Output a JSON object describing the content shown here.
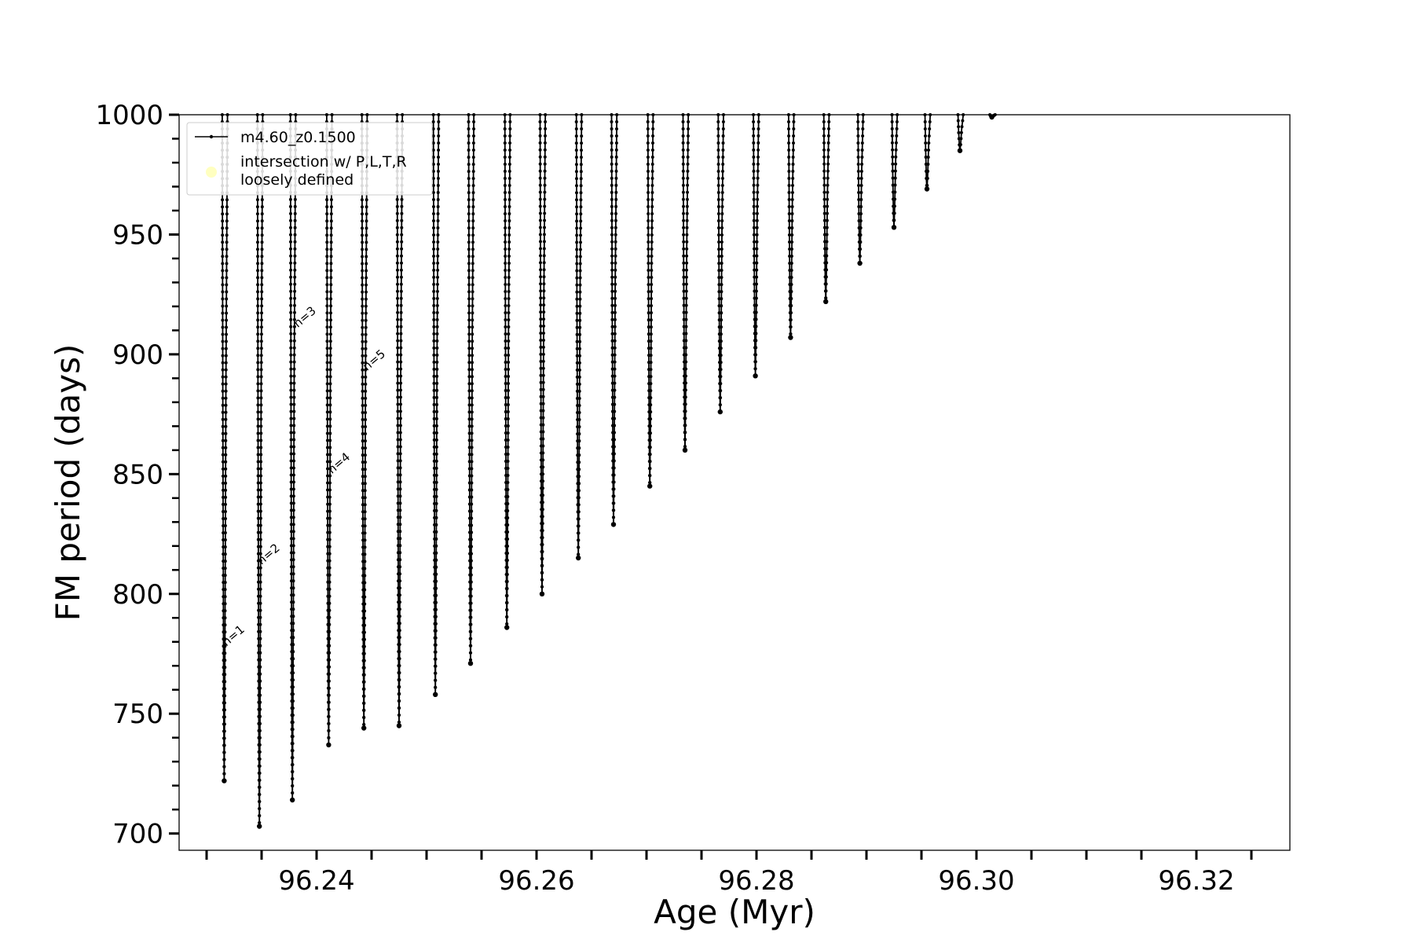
{
  "chart_data": {
    "type": "line",
    "xlabel": "Age (Myr)",
    "ylabel": "FM period (days)",
    "xlim": [
      96.2275,
      96.3285
    ],
    "ylim": [
      693,
      1000
    ],
    "xticks": [
      "96.24",
      "96.26",
      "96.28",
      "96.30",
      "96.32"
    ],
    "yticks": [
      "700",
      "750",
      "800",
      "850",
      "900",
      "950",
      "1000"
    ],
    "grid": false,
    "legend_position": "top-left",
    "legend": [
      {
        "label": "m4.60_z0.1500",
        "marker": "line-with-dots",
        "color": "#000000"
      },
      {
        "label": "intersection w/ P,L,T,R\nloosely defined",
        "marker": "circle",
        "color": "#ffffc0"
      }
    ],
    "series": [
      {
        "name": "m4.60_z0.1500",
        "color": "#000000",
        "loops": [
          {
            "x": 96.2316,
            "min": 722
          },
          {
            "x": 96.2348,
            "min": 703
          },
          {
            "x": 96.2378,
            "min": 714
          },
          {
            "x": 96.2411,
            "min": 737
          },
          {
            "x": 96.2443,
            "min": 744
          },
          {
            "x": 96.2475,
            "min": 745
          },
          {
            "x": 96.2508,
            "min": 758
          },
          {
            "x": 96.254,
            "min": 771
          },
          {
            "x": 96.2573,
            "min": 786
          },
          {
            "x": 96.2605,
            "min": 800
          },
          {
            "x": 96.2638,
            "min": 815
          },
          {
            "x": 96.267,
            "min": 829
          },
          {
            "x": 96.2703,
            "min": 845
          },
          {
            "x": 96.2735,
            "min": 860
          },
          {
            "x": 96.2767,
            "min": 876
          },
          {
            "x": 96.2799,
            "min": 891
          },
          {
            "x": 96.2831,
            "min": 907
          },
          {
            "x": 96.2863,
            "min": 922
          },
          {
            "x": 96.2894,
            "min": 938
          },
          {
            "x": 96.2925,
            "min": 953
          },
          {
            "x": 96.2955,
            "min": 969
          },
          {
            "x": 96.2985,
            "min": 985
          },
          {
            "x": 96.3014,
            "min": 999
          }
        ]
      }
    ],
    "annotations": [
      {
        "text": "n=1",
        "x": 96.2315,
        "y": 778
      },
      {
        "text": "n=2",
        "x": 96.2347,
        "y": 812
      },
      {
        "text": "n=3",
        "x": 96.238,
        "y": 911
      },
      {
        "text": "n=4",
        "x": 96.2411,
        "y": 850
      },
      {
        "text": "n=5",
        "x": 96.2443,
        "y": 893
      }
    ]
  }
}
